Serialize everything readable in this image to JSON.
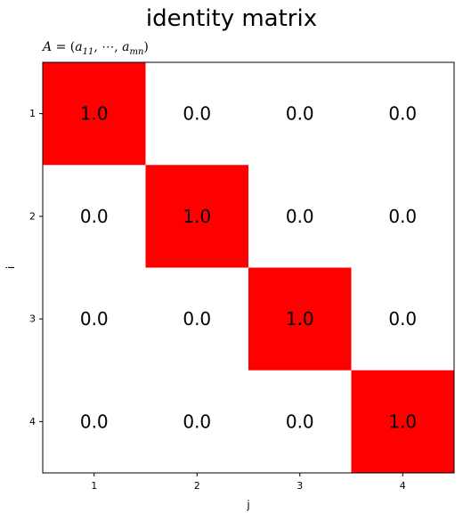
{
  "title": "identity matrix",
  "subtitle": {
    "lhs": "A",
    "eq": " = (",
    "a1": "a",
    "sub1": "11",
    "sep": ", ⋯, ",
    "a2": "a",
    "sub2": "mn",
    "close": ")"
  },
  "chart_data": {
    "type": "heatmap",
    "xlabel": "j",
    "ylabel": "i",
    "x_ticks": [
      "1",
      "2",
      "3",
      "4"
    ],
    "y_ticks": [
      "1",
      "2",
      "3",
      "4"
    ],
    "values": [
      [
        1.0,
        0.0,
        0.0,
        0.0
      ],
      [
        0.0,
        1.0,
        0.0,
        0.0
      ],
      [
        0.0,
        0.0,
        1.0,
        0.0
      ],
      [
        0.0,
        0.0,
        0.0,
        1.0
      ]
    ],
    "cell_labels": [
      [
        "1.0",
        "0.0",
        "0.0",
        "0.0"
      ],
      [
        "0.0",
        "1.0",
        "0.0",
        "0.0"
      ],
      [
        "0.0",
        "0.0",
        "1.0",
        "0.0"
      ],
      [
        "0.0",
        "0.0",
        "0.0",
        "1.0"
      ]
    ],
    "colors": {
      "high": "#ff0000",
      "low": "#ffffff"
    },
    "grid": false
  }
}
